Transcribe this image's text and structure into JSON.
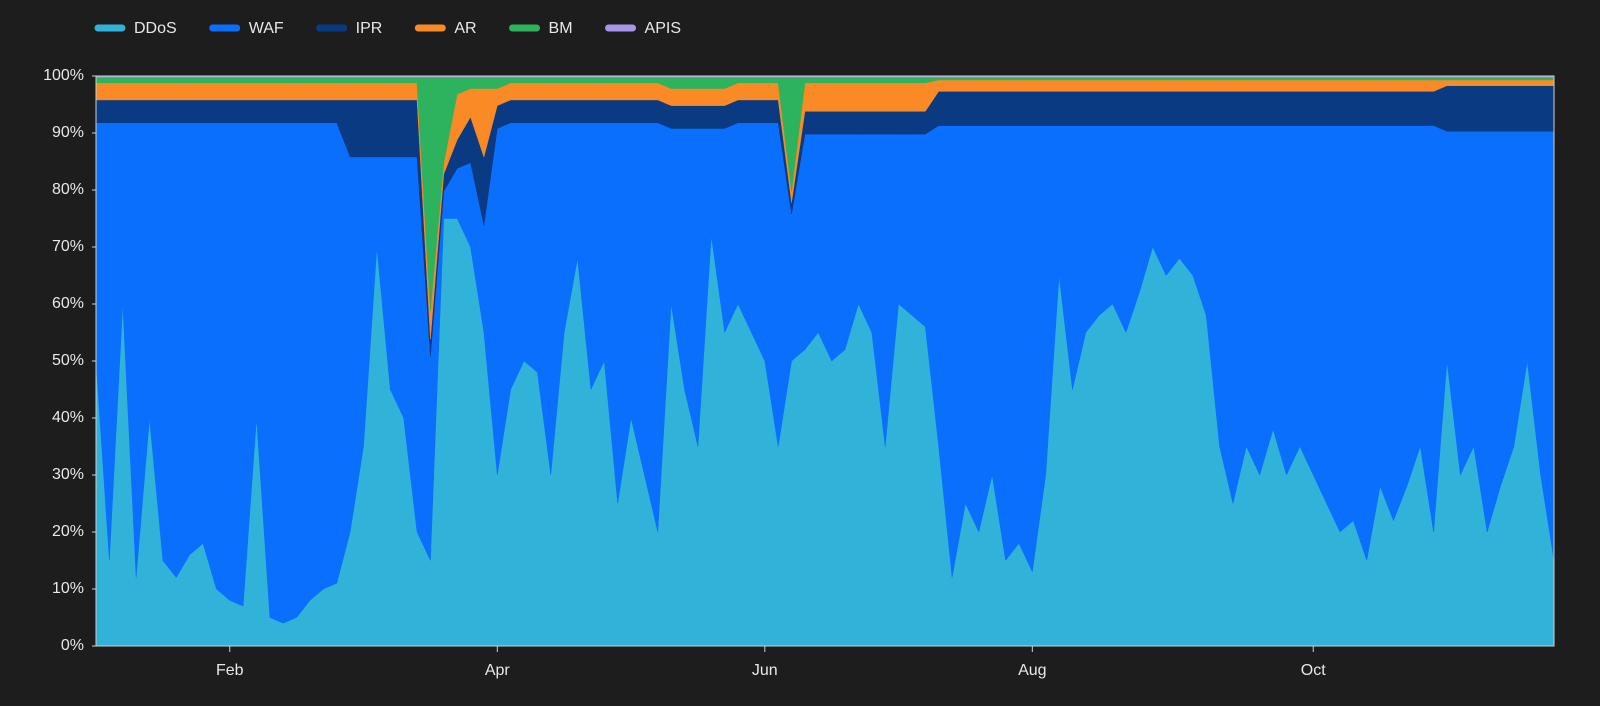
{
  "chart_data": {
    "type": "stacked_area_100",
    "categories": [
      null,
      null,
      null,
      null,
      null,
      null,
      null,
      null,
      null,
      null,
      "Feb",
      null,
      null,
      null,
      null,
      null,
      null,
      null,
      null,
      null,
      null,
      null,
      null,
      null,
      null,
      null,
      null,
      null,
      null,
      null,
      "Apr",
      null,
      null,
      null,
      null,
      null,
      null,
      null,
      null,
      null,
      null,
      null,
      null,
      null,
      null,
      null,
      null,
      null,
      null,
      null,
      "Jun",
      null,
      null,
      null,
      null,
      null,
      null,
      null,
      null,
      null,
      null,
      null,
      null,
      null,
      null,
      null,
      null,
      null,
      null,
      null,
      "Aug",
      null,
      null,
      null,
      null,
      null,
      null,
      null,
      null,
      null,
      null,
      null,
      null,
      null,
      null,
      null,
      null,
      null,
      null,
      null,
      null,
      "Oct",
      null,
      null,
      null,
      null,
      null,
      null,
      null,
      null,
      null,
      null,
      null,
      null,
      null,
      null,
      null,
      null,
      null,
      null
    ],
    "series": [
      {
        "name": "DDoS",
        "color": "#31b3d9",
        "values": [
          50,
          15,
          60,
          12,
          40,
          15,
          12,
          16,
          18,
          10,
          8,
          7,
          40,
          5,
          4,
          5,
          8,
          10,
          11,
          20,
          35,
          70,
          45,
          40,
          20,
          15,
          75,
          75,
          70,
          55,
          30,
          45,
          50,
          48,
          30,
          55,
          68,
          45,
          50,
          25,
          40,
          30,
          20,
          60,
          45,
          35,
          72,
          55,
          60,
          55,
          50,
          35,
          50,
          52,
          55,
          50,
          52,
          60,
          55,
          35,
          60,
          58,
          56,
          35,
          12,
          25,
          20,
          30,
          15,
          18,
          13,
          30,
          65,
          45,
          55,
          58,
          60,
          55,
          62,
          70,
          65,
          68,
          65,
          58,
          35,
          25,
          35,
          30,
          38,
          30,
          35,
          30,
          25,
          20,
          22,
          15,
          28,
          22,
          28,
          35,
          20,
          50,
          30,
          35,
          20,
          28,
          35,
          50,
          30,
          15
        ]
      },
      {
        "name": "WAF",
        "color": "#0b6ffd",
        "values": [
          41.8,
          76.8,
          31.8,
          79.8,
          51.8,
          76.8,
          79.8,
          75.8,
          73.8,
          81.8,
          83.8,
          84.8,
          51.8,
          86.8,
          87.8,
          86.8,
          83.8,
          81.8,
          80.8,
          65.8,
          50.8,
          15.8,
          40.8,
          45.8,
          65.8,
          35.8,
          4.8,
          8.8,
          14.8,
          18.8,
          60.8,
          46.8,
          41.8,
          43.8,
          61.8,
          36.8,
          23.8,
          46.8,
          41.8,
          66.8,
          51.8,
          61.8,
          71.8,
          30.8,
          45.8,
          55.8,
          18.8,
          35.8,
          31.8,
          36.8,
          41.8,
          56.8,
          25.8,
          37.8,
          34.8,
          39.8,
          37.8,
          29.8,
          34.8,
          54.8,
          29.8,
          31.8,
          33.8,
          56.3,
          79.3,
          66.3,
          71.3,
          61.3,
          76.3,
          73.3,
          78.3,
          61.3,
          26.3,
          46.3,
          36.3,
          33.3,
          31.3,
          36.3,
          29.3,
          21.3,
          26.3,
          23.3,
          26.3,
          33.3,
          56.3,
          66.3,
          56.3,
          61.3,
          53.3,
          61.3,
          56.3,
          61.3,
          66.3,
          71.3,
          69.3,
          76.3,
          63.3,
          69.3,
          63.3,
          56.3,
          71.3,
          40.3,
          60.3,
          55.3,
          70.3,
          62.3,
          55.3,
          40.3,
          60.3,
          75.3
        ]
      },
      {
        "name": "IPR",
        "color": "#0a3a82",
        "values": [
          4,
          4,
          4,
          4,
          4,
          4,
          4,
          4,
          4,
          4,
          4,
          4,
          4,
          4,
          4,
          4,
          4,
          4,
          4,
          10,
          10,
          10,
          10,
          10,
          10,
          3,
          3,
          5,
          8,
          12,
          4,
          4,
          4,
          4,
          4,
          4,
          4,
          4,
          4,
          4,
          4,
          4,
          4,
          4,
          4,
          4,
          4,
          4,
          4,
          4,
          4,
          4,
          2,
          4,
          4,
          4,
          4,
          4,
          4,
          4,
          4,
          4,
          4,
          6,
          6,
          6,
          6,
          6,
          6,
          6,
          6,
          6,
          6,
          6,
          6,
          6,
          6,
          6,
          6,
          6,
          6,
          6,
          6,
          6,
          6,
          6,
          6,
          6,
          6,
          6,
          6,
          6,
          6,
          6,
          6,
          6,
          6,
          6,
          6,
          6,
          6,
          8,
          8,
          8,
          8,
          8,
          8,
          8,
          8,
          8
        ]
      },
      {
        "name": "AR",
        "color": "#f98a25",
        "values": [
          3,
          3,
          3,
          3,
          3,
          3,
          3,
          3,
          3,
          3,
          3,
          3,
          3,
          3,
          3,
          3,
          3,
          3,
          3,
          3,
          3,
          3,
          3,
          3,
          3,
          5,
          2,
          8,
          5,
          12,
          3,
          3,
          3,
          3,
          3,
          3,
          3,
          3,
          3,
          3,
          3,
          3,
          3,
          3,
          3,
          3,
          3,
          3,
          3,
          3,
          3,
          3,
          2,
          5,
          5,
          5,
          5,
          5,
          5,
          5,
          5,
          5,
          5,
          2,
          2,
          2,
          2,
          2,
          2,
          2,
          2,
          2,
          2,
          2,
          2,
          2,
          2,
          2,
          2,
          2,
          2,
          2,
          2,
          2,
          2,
          2,
          2,
          2,
          2,
          2,
          2,
          2,
          2,
          2,
          2,
          2,
          2,
          2,
          2,
          2,
          2,
          1,
          1,
          1,
          1,
          1,
          1,
          1,
          1,
          1
        ]
      },
      {
        "name": "BM",
        "color": "#2db35d",
        "values": [
          1,
          1,
          1,
          1,
          1,
          1,
          1,
          1,
          1,
          1,
          1,
          1,
          1,
          1,
          1,
          1,
          1,
          1,
          1,
          1,
          1,
          1,
          1,
          1,
          1,
          41,
          15,
          3,
          2,
          2,
          2,
          1,
          1,
          1,
          1,
          1,
          1,
          1,
          1,
          1,
          1,
          1,
          1,
          2,
          2,
          2,
          2,
          2,
          1,
          1,
          1,
          1,
          20,
          1,
          1,
          1,
          1,
          1,
          1,
          1,
          1,
          1,
          1,
          0.5,
          0.5,
          0.5,
          0.5,
          0.5,
          0.5,
          0.5,
          0.5,
          0.5,
          0.5,
          0.5,
          0.5,
          0.5,
          0.5,
          0.5,
          0.5,
          0.5,
          0.5,
          0.5,
          0.5,
          0.5,
          0.5,
          0.5,
          0.5,
          0.5,
          0.5,
          0.5,
          0.5,
          0.5,
          0.5,
          0.5,
          0.5,
          0.5,
          0.5,
          0.5,
          0.5,
          0.5,
          0.5,
          0.5,
          0.5,
          0.5,
          0.5,
          0.5,
          0.5,
          0.5,
          0.5,
          0.5
        ]
      },
      {
        "name": "APIS",
        "color": "#a795e8",
        "values": [
          0.2,
          0.2,
          0.2,
          0.2,
          0.2,
          0.2,
          0.2,
          0.2,
          0.2,
          0.2,
          0.2,
          0.2,
          0.2,
          0.2,
          0.2,
          0.2,
          0.2,
          0.2,
          0.2,
          0.2,
          0.2,
          0.2,
          0.2,
          0.2,
          0.2,
          0.2,
          0.2,
          0.2,
          0.2,
          0.2,
          0.2,
          0.2,
          0.2,
          0.2,
          0.2,
          0.2,
          0.2,
          0.2,
          0.2,
          0.2,
          0.2,
          0.2,
          0.2,
          0.2,
          0.2,
          0.2,
          0.2,
          0.2,
          0.2,
          0.2,
          0.2,
          0.2,
          0.2,
          0.2,
          0.2,
          0.2,
          0.2,
          0.2,
          0.2,
          0.2,
          0.2,
          0.2,
          0.2,
          0.2,
          0.2,
          0.2,
          0.2,
          0.2,
          0.2,
          0.2,
          0.2,
          0.2,
          0.2,
          0.2,
          0.2,
          0.2,
          0.2,
          0.2,
          0.2,
          0.2,
          0.2,
          0.2,
          0.2,
          0.2,
          0.2,
          0.2,
          0.2,
          0.2,
          0.2,
          0.2,
          0.2,
          0.2,
          0.2,
          0.2,
          0.2,
          0.2,
          0.2,
          0.2,
          0.2,
          0.2,
          0.2,
          0.2,
          0.2,
          0.2,
          0.2,
          0.2,
          0.2,
          0.2,
          0.2,
          0.2
        ]
      }
    ],
    "ylim": [
      0,
      100
    ],
    "yticks": [
      {
        "value": 0,
        "label": "0%"
      },
      {
        "value": 10,
        "label": "10%"
      },
      {
        "value": 20,
        "label": "20%"
      },
      {
        "value": 30,
        "label": "30%"
      },
      {
        "value": 40,
        "label": "40%"
      },
      {
        "value": 50,
        "label": "50%"
      },
      {
        "value": 60,
        "label": "60%"
      },
      {
        "value": 70,
        "label": "70%"
      },
      {
        "value": 80,
        "label": "80%"
      },
      {
        "value": 90,
        "label": "90%"
      },
      {
        "value": 100,
        "label": "100%"
      }
    ],
    "legend": "top-left",
    "grid": false
  }
}
